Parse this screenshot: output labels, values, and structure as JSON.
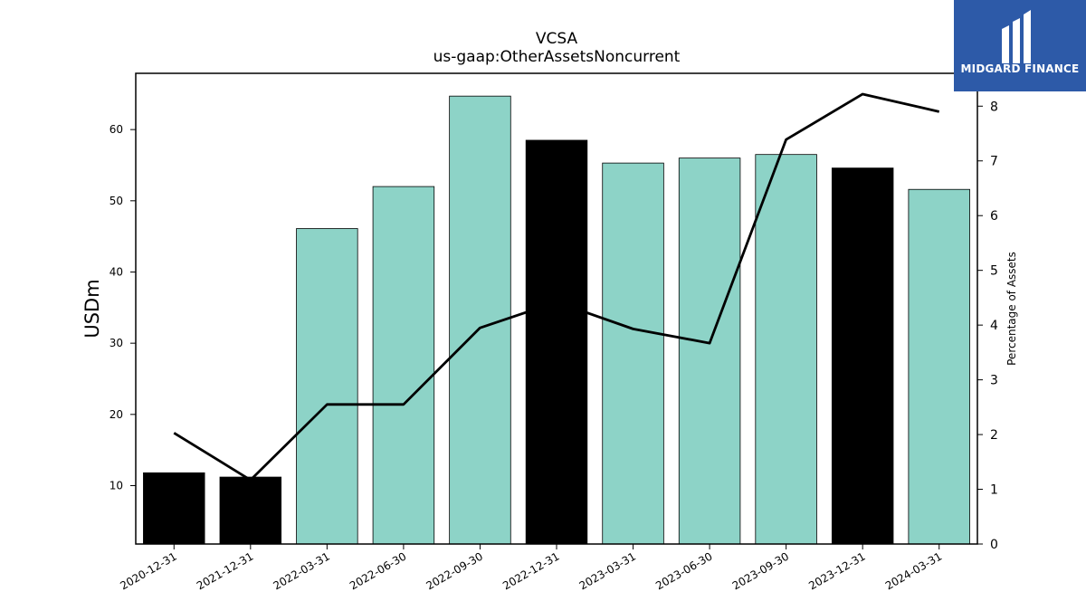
{
  "brand": {
    "name": "MIDGARD FINANCE",
    "bg_color": "#2d5aa8"
  },
  "chart_data": {
    "type": "bar",
    "title": "VCSA",
    "subtitle": "us-gaap:OtherAssetsNoncurrent",
    "ylabel": "USDm",
    "y2label": "Percentage of Assets",
    "categories": [
      "2020-12-31",
      "2021-12-31",
      "2022-03-31",
      "2022-06-30",
      "2022-09-30",
      "2022-12-31",
      "2023-03-31",
      "2023-06-30",
      "2023-09-30",
      "2023-12-31",
      "2024-03-31"
    ],
    "series": [
      {
        "type": "bar",
        "values": [
          11.8,
          11.2,
          46.1,
          52.0,
          64.7,
          58.5,
          55.3,
          56.0,
          56.5,
          54.6,
          51.6
        ],
        "colors": [
          "#000000",
          "#000000",
          "#8dd3c7",
          "#8dd3c7",
          "#8dd3c7",
          "#000000",
          "#8dd3c7",
          "#8dd3c7",
          "#8dd3c7",
          "#000000",
          "#8dd3c7"
        ]
      },
      {
        "type": "line",
        "axis": "right",
        "color": "#000000",
        "values": [
          2.03,
          1.17,
          2.55,
          2.55,
          3.95,
          4.42,
          3.93,
          3.67,
          7.39,
          8.22,
          7.9
        ]
      }
    ],
    "ylim": [
      1.8,
      67.9
    ],
    "yticks": [
      10,
      20,
      30,
      40,
      50,
      60
    ],
    "y2lim": [
      0,
      8.6
    ],
    "y2ticks": [
      0,
      1,
      2,
      3,
      4,
      5,
      6,
      7,
      8
    ],
    "grid": false,
    "legend": "none"
  }
}
